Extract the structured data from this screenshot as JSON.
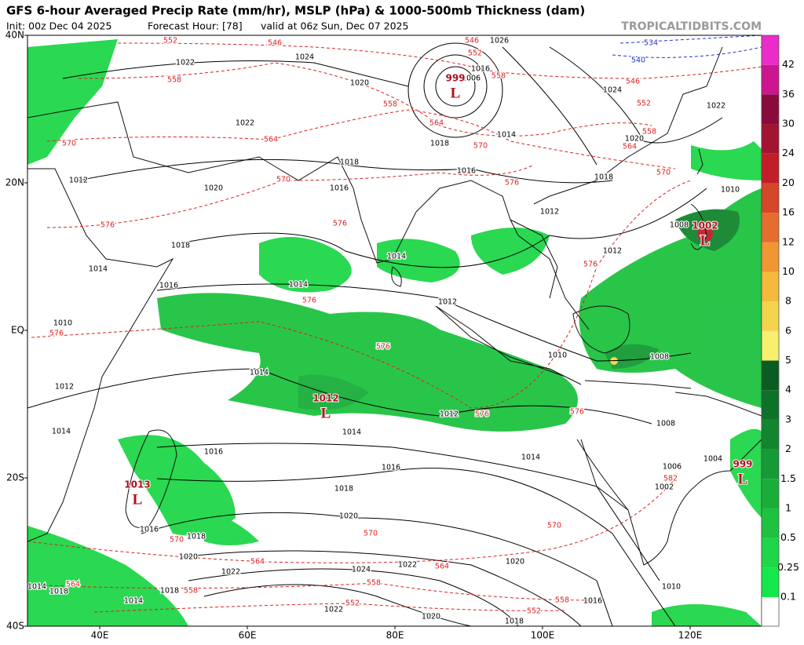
{
  "header": {
    "title": "GFS 6-hour Averaged Precip Rate (mm/hr), MSLP (hPa) & 1000-500mb Thickness (dam)",
    "init": "Init: 00z Dec 04 2025",
    "forecast_hour": "Forecast Hour: [78]",
    "valid": "valid at 06z Sun, Dec 07 2025",
    "watermark": "TROPICALTIDBITS.COM"
  },
  "axes": {
    "lat_labels": [
      "40N",
      "20N",
      "EQ",
      "20S",
      "40S"
    ],
    "lon_labels": [
      "40E",
      "60E",
      "80E",
      "100E",
      "120E"
    ]
  },
  "colorbar": {
    "levels": [
      "0.1",
      "0.25",
      "0.5",
      "1",
      "1.5",
      "2",
      "3",
      "4",
      "5",
      "6",
      "8",
      "10",
      "12",
      "16",
      "20",
      "24",
      "30",
      "36",
      "42"
    ],
    "colors": [
      "#15e84a",
      "#1fd648",
      "#1ec240",
      "#1aad3a",
      "#169a35",
      "#12852f",
      "#0e7129",
      "#0a5c23",
      "#f7ef6d",
      "#f5d44d",
      "#f4b93d",
      "#f09633",
      "#e56d2d",
      "#d64628",
      "#c21e29",
      "#a31433",
      "#8a0a3d",
      "#cb1690",
      "#ea2ccb"
    ]
  },
  "lows": [
    {
      "pressure": "999",
      "symbol": "L"
    },
    {
      "pressure": "1012",
      "symbol": "L"
    },
    {
      "pressure": "1013",
      "symbol": "L"
    },
    {
      "pressure": "999",
      "symbol": "L"
    },
    {
      "pressure": "1002",
      "symbol": "L"
    }
  ],
  "isobar_labels": [
    "1022",
    "1018",
    "1016",
    "1020",
    "1012",
    "1018",
    "1014",
    "1016",
    "1014",
    "1014",
    "1012",
    "1012",
    "1012",
    "1008",
    "1010",
    "1008",
    "1010",
    "1014",
    "1012",
    "1014",
    "1016",
    "1014",
    "1016",
    "1018",
    "1008",
    "1006",
    "1004",
    "1002",
    "1020",
    "1016",
    "1018",
    "1020",
    "1022",
    "1024",
    "1022",
    "1020",
    "1018",
    "1014",
    "1016",
    "1010",
    "1022",
    "1020",
    "1018",
    "1022",
    "1024",
    "1020",
    "1026",
    "1016",
    "1006",
    "1014",
    "1018",
    "1016",
    "1024",
    "1020",
    "1022",
    "1018",
    "1014",
    "1018",
    "1012",
    "1014",
    "1010"
  ],
  "thickness_labels": [
    "552",
    "546",
    "558",
    "570",
    "564",
    "570",
    "576",
    "576",
    "576",
    "576",
    "576",
    "576",
    "570",
    "564",
    "558",
    "552",
    "546",
    "546",
    "552",
    "558",
    "558",
    "564",
    "570",
    "576",
    "576",
    "576",
    "582",
    "570",
    "570",
    "564",
    "564",
    "558",
    "558",
    "564",
    "552",
    "552",
    "558",
    "570",
    "540",
    "534"
  ]
}
